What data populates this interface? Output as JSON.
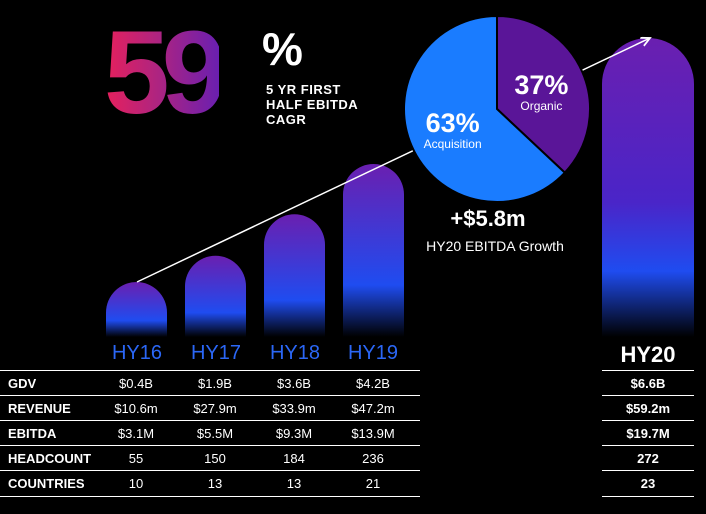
{
  "headline": {
    "value": "59",
    "unit": "%",
    "label": "5 YR FIRST\nHALF EBITDA\nCAGR"
  },
  "chart_data": {
    "type": "bar",
    "categories": [
      "HY16",
      "HY17",
      "HY18",
      "HY19",
      "HY20"
    ],
    "series": [
      {
        "values": [
          3.1,
          5.5,
          9.3,
          13.9,
          19.7
        ]
      }
    ]
  },
  "pie": {
    "type": "pie",
    "slices": [
      {
        "label": "Acquisition",
        "value": 63,
        "value_text": "63%",
        "color": "#1a7cff"
      },
      {
        "label": "Organic",
        "value": 37,
        "value_text": "37%",
        "color": "#5a1598"
      }
    ]
  },
  "growth": {
    "value": "+$5.8m",
    "label": "HY20 EBITDA Growth"
  },
  "table": {
    "rows": [
      {
        "label": "GDV",
        "values": [
          "$0.4B",
          "$1.9B",
          "$3.6B",
          "$4.2B"
        ],
        "hy20": "$6.6B"
      },
      {
        "label": "REVENUE",
        "values": [
          "$10.6m",
          "$27.9m",
          "$33.9m",
          "$47.2m"
        ],
        "hy20": "$59.2m"
      },
      {
        "label": "EBITDA",
        "values": [
          "$3.1M",
          "$5.5M",
          "$9.3M",
          "$13.9M"
        ],
        "hy20": "$19.7M"
      },
      {
        "label": "HEADCOUNT",
        "values": [
          "55",
          "150",
          "184",
          "236"
        ],
        "hy20": "272"
      },
      {
        "label": "COUNTRIES",
        "values": [
          "10",
          "13",
          "13",
          "21"
        ],
        "hy20": "23"
      }
    ]
  },
  "colors": {
    "bar_top": "#6a1fb0",
    "bar_mid": "#1f4cf0",
    "bar_bottom": "#000000",
    "accent_blue": "#2b67f6"
  }
}
